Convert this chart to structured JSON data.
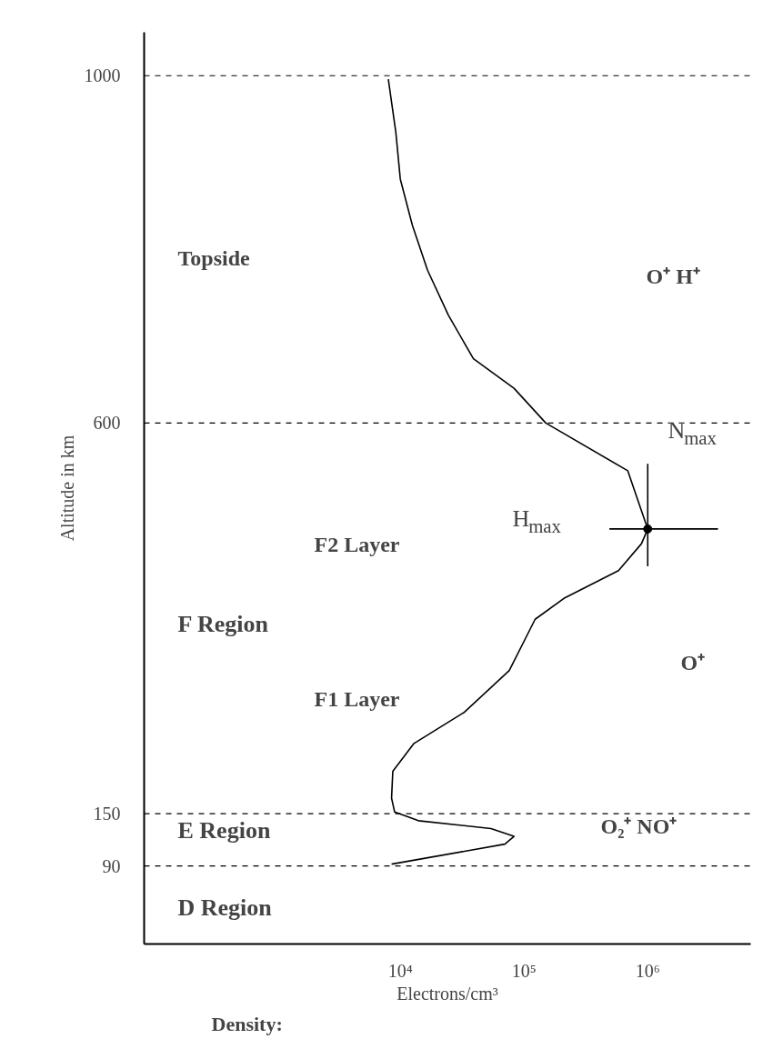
{
  "chart_data": {
    "type": "line",
    "xlabel": "Electrons/cm³",
    "ylabel": "Altitude in km",
    "x": [
      8500,
      70000,
      83000,
      54000,
      14000,
      9000,
      8500,
      8700,
      12900,
      33000,
      76000,
      123000,
      210000,
      580000,
      890000,
      1000000,
      690000,
      150000,
      83000,
      39000,
      24500,
      16600,
      12500,
      10000,
      9200,
      8000
    ],
    "series": [
      {
        "color": "#000000",
        "values": [
          92,
          115,
          124,
          133,
          142,
          152,
          168,
          199,
          231,
          267,
          315,
          374,
          398,
          430,
          461,
          478,
          545,
          600,
          640,
          674,
          724,
          776,
          828,
          881,
          935,
          996
        ]
      },
      {
        "type": "scatter",
        "marker": "circle",
        "color": "#000000",
        "x": [
          1000000
        ],
        "values": [
          478
        ],
        "errors": [
          [
            435,
            553
          ]
        ],
        "xerrors": [
          [
            490000,
            3700000
          ]
        ]
      }
    ],
    "log": "x",
    "xlim": [
      85,
      6800000
    ],
    "ylim": [
      0,
      1050
    ],
    "xticks": [
      {
        "value": 10000,
        "label": "10⁴"
      },
      {
        "value": 100000,
        "label": "10⁵"
      },
      {
        "value": 1000000,
        "label": "10⁶"
      }
    ],
    "yticks": [
      90,
      150,
      600,
      1000
    ],
    "ref_lines": [
      {
        "axis": "y",
        "value": 90,
        "line_style": "dashed",
        "color": "#000000"
      },
      {
        "axis": "y",
        "value": 150,
        "line_style": "dashed",
        "color": "#000000"
      },
      {
        "axis": "y",
        "value": 600,
        "line_style": "dashed",
        "color": "#000000"
      },
      {
        "axis": "y",
        "value": 1000,
        "line_style": "dashed",
        "color": "#000000"
      }
    ],
    "annotations": [
      "Density:",
      "Topside",
      "O⁺ H⁺",
      "N$_{max}$",
      "H$_{max}$",
      "F2 Layer",
      "F Region",
      "O⁺",
      "F1 Layer",
      "E Region",
      "O₂⁺ NO⁺",
      "D Region"
    ],
    "grid": false
  }
}
